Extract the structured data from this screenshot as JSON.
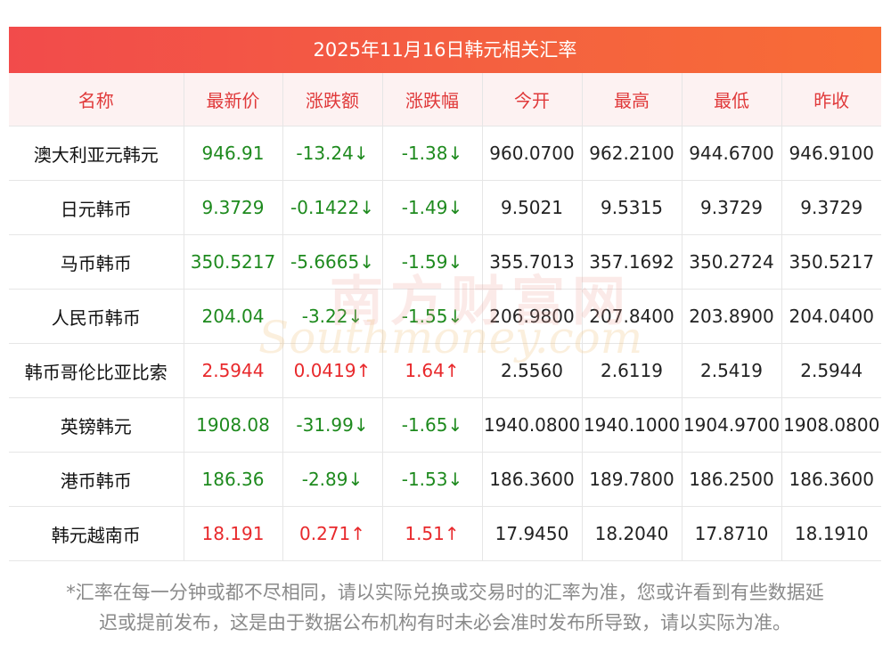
{
  "title": "2025年11月16日韩元相关汇率",
  "headers": [
    "名称",
    "最新价",
    "涨跌额",
    "涨跌幅",
    "今开",
    "最高",
    "最低",
    "昨收"
  ],
  "rows": [
    {
      "name": "澳大利亚元韩元",
      "latest": "946.91",
      "change": "-13.24↓",
      "change_pct": "-1.38↓",
      "open": "960.0700",
      "high": "962.2100",
      "low": "944.6700",
      "prev_close": "946.9100",
      "direction": "down"
    },
    {
      "name": "日元韩币",
      "latest": "9.3729",
      "change": "-0.1422↓",
      "change_pct": "-1.49↓",
      "open": "9.5021",
      "high": "9.5315",
      "low": "9.3729",
      "prev_close": "9.3729",
      "direction": "down"
    },
    {
      "name": "马币韩币",
      "latest": "350.5217",
      "change": "-5.6665↓",
      "change_pct": "-1.59↓",
      "open": "355.7013",
      "high": "357.1692",
      "low": "350.2724",
      "prev_close": "350.5217",
      "direction": "down"
    },
    {
      "name": "人民币韩币",
      "latest": "204.04",
      "change": "-3.22↓",
      "change_pct": "-1.55↓",
      "open": "206.9800",
      "high": "207.8400",
      "low": "203.8900",
      "prev_close": "204.0400",
      "direction": "down"
    },
    {
      "name": "韩币哥伦比亚比索",
      "latest": "2.5944",
      "change": "0.0419↑",
      "change_pct": "1.64↑",
      "open": "2.5560",
      "high": "2.6119",
      "low": "2.5419",
      "prev_close": "2.5944",
      "direction": "up"
    },
    {
      "name": "英镑韩元",
      "latest": "1908.08",
      "change": "-31.99↓",
      "change_pct": "-1.65↓",
      "open": "1940.0800",
      "high": "1940.1000",
      "low": "1904.9700",
      "prev_close": "1908.0800",
      "direction": "down"
    },
    {
      "name": "港币韩币",
      "latest": "186.36",
      "change": "-2.89↓",
      "change_pct": "-1.53↓",
      "open": "186.3600",
      "high": "189.7800",
      "low": "186.2500",
      "prev_close": "186.3600",
      "direction": "down"
    },
    {
      "name": "韩元越南币",
      "latest": "18.191",
      "change": "0.271↑",
      "change_pct": "1.51↑",
      "open": "17.9450",
      "high": "18.2040",
      "low": "17.8710",
      "prev_close": "18.1910",
      "direction": "up"
    }
  ],
  "note_line1": "*汇率在每一分钟或都不尽相同，请以实际兑换或交易时的汇率为准，您或许看到有些数据延",
  "note_line2": "迟或提前发布，这是由于数据公布机构有时未必会准时发布所导致，请以实际为准。",
  "watermark_cn": "南方财富网",
  "watermark_en": "Southmoney.com",
  "colors": {
    "header_bar": "#f24b4b",
    "header_text": "#e0393a",
    "down": "#1e8a1e",
    "up": "#e8292c",
    "header_bg": "#fdf2f2"
  }
}
